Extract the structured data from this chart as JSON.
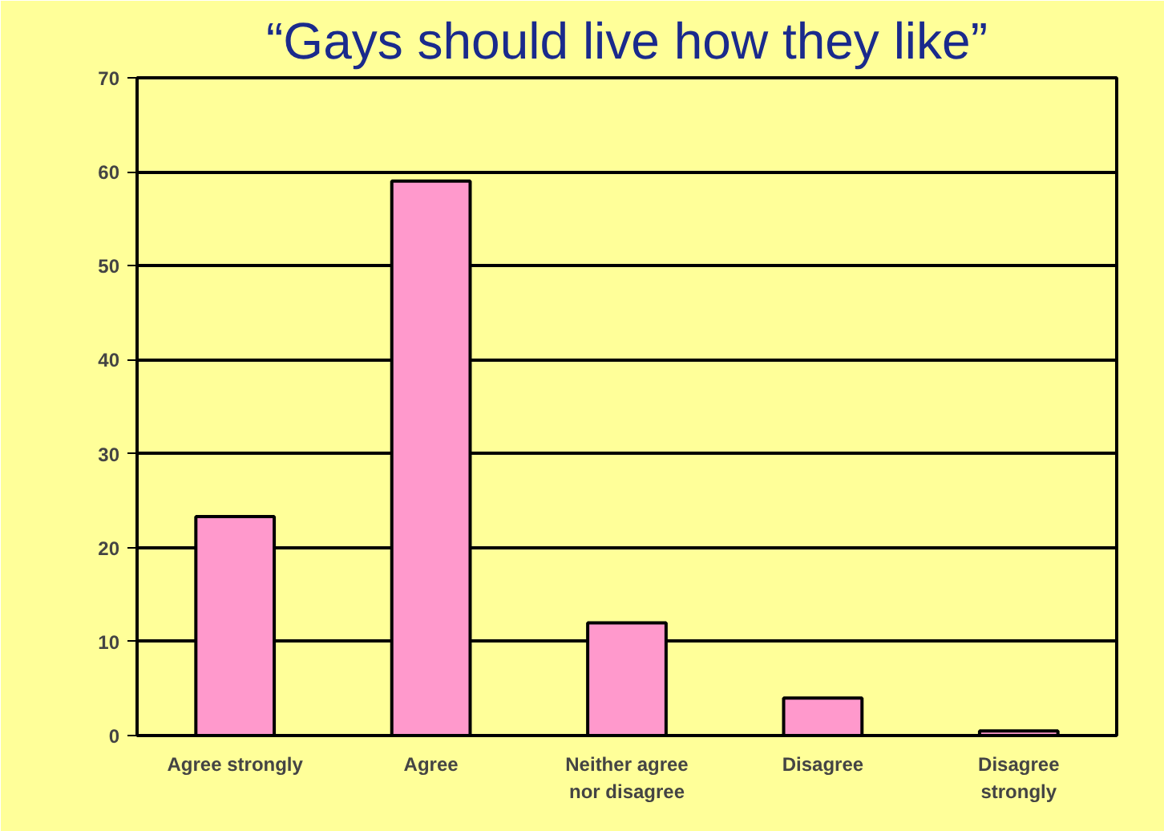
{
  "chart_data": {
    "type": "bar",
    "title": "“Gays should live how they like”",
    "categories": [
      "Agree strongly",
      "Agree",
      "Neither agree nor disagree",
      "Disagree",
      "Disagree strongly"
    ],
    "values": [
      23.3,
      59,
      12,
      4,
      0.5
    ],
    "color": "#ff99cc",
    "ylim": [
      0,
      70
    ],
    "yticks": [
      0,
      10,
      20,
      30,
      40,
      50,
      60,
      70
    ],
    "grid": "y"
  }
}
